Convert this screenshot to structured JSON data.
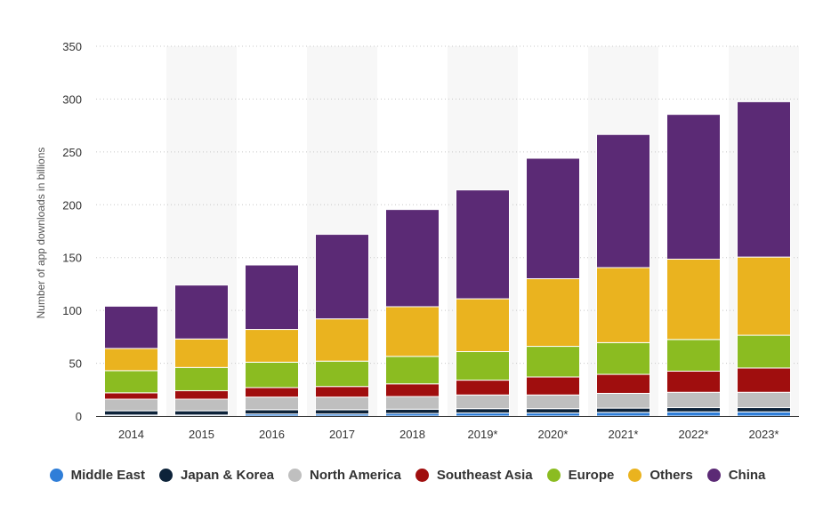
{
  "chart_data": {
    "type": "bar",
    "stacked": true,
    "title": "",
    "xlabel": "",
    "ylabel": "Number of app downloads in billions",
    "ylim": [
      0,
      350
    ],
    "yticks": [
      0,
      50,
      100,
      150,
      200,
      250,
      300,
      350
    ],
    "grid": "horizontal dotted",
    "legend_position": "bottom",
    "categories": [
      "2014",
      "2015",
      "2016",
      "2017",
      "2018",
      "2019*",
      "2020*",
      "2021*",
      "2022*",
      "2023*"
    ],
    "series": [
      {
        "name": "Middle East",
        "color": "#2f7ed8",
        "values": [
          1,
          1,
          2,
          2,
          2.5,
          3,
          3,
          3.5,
          4,
          4
        ]
      },
      {
        "name": "Japan & Korea",
        "color": "#0d233a",
        "values": [
          4,
          4,
          4,
          4,
          4,
          4,
          4,
          4,
          4,
          4
        ]
      },
      {
        "name": "North America",
        "color": "#bfbfbf",
        "values": [
          11,
          11,
          12,
          12,
          12,
          13,
          13,
          14,
          14.5,
          14.5
        ]
      },
      {
        "name": "Southeast Asia",
        "color": "#a00e0e",
        "values": [
          6,
          8,
          9,
          10,
          12,
          14,
          17,
          18,
          20,
          23
        ]
      },
      {
        "name": "Europe",
        "color": "#8bbc21",
        "values": [
          21,
          22,
          24,
          24,
          26,
          27,
          29,
          30,
          30,
          31
        ]
      },
      {
        "name": "Others",
        "color": "#eab31f",
        "values": [
          21,
          27,
          31,
          40,
          47,
          50,
          64,
          71,
          76,
          74
        ]
      },
      {
        "name": "China",
        "color": "#5b2a75",
        "values": [
          40,
          51,
          61,
          80,
          92,
          103,
          114,
          126,
          137,
          147
        ]
      }
    ]
  },
  "legend": {
    "items": [
      {
        "label": "Middle East",
        "color": "#2f7ed8"
      },
      {
        "label": "Japan & Korea",
        "color": "#0d233a"
      },
      {
        "label": "North America",
        "color": "#bfbfbf"
      },
      {
        "label": "Southeast Asia",
        "color": "#a00e0e"
      },
      {
        "label": "Europe",
        "color": "#8bbc21"
      },
      {
        "label": "Others",
        "color": "#eab31f"
      },
      {
        "label": "China",
        "color": "#5b2a75"
      }
    ]
  }
}
